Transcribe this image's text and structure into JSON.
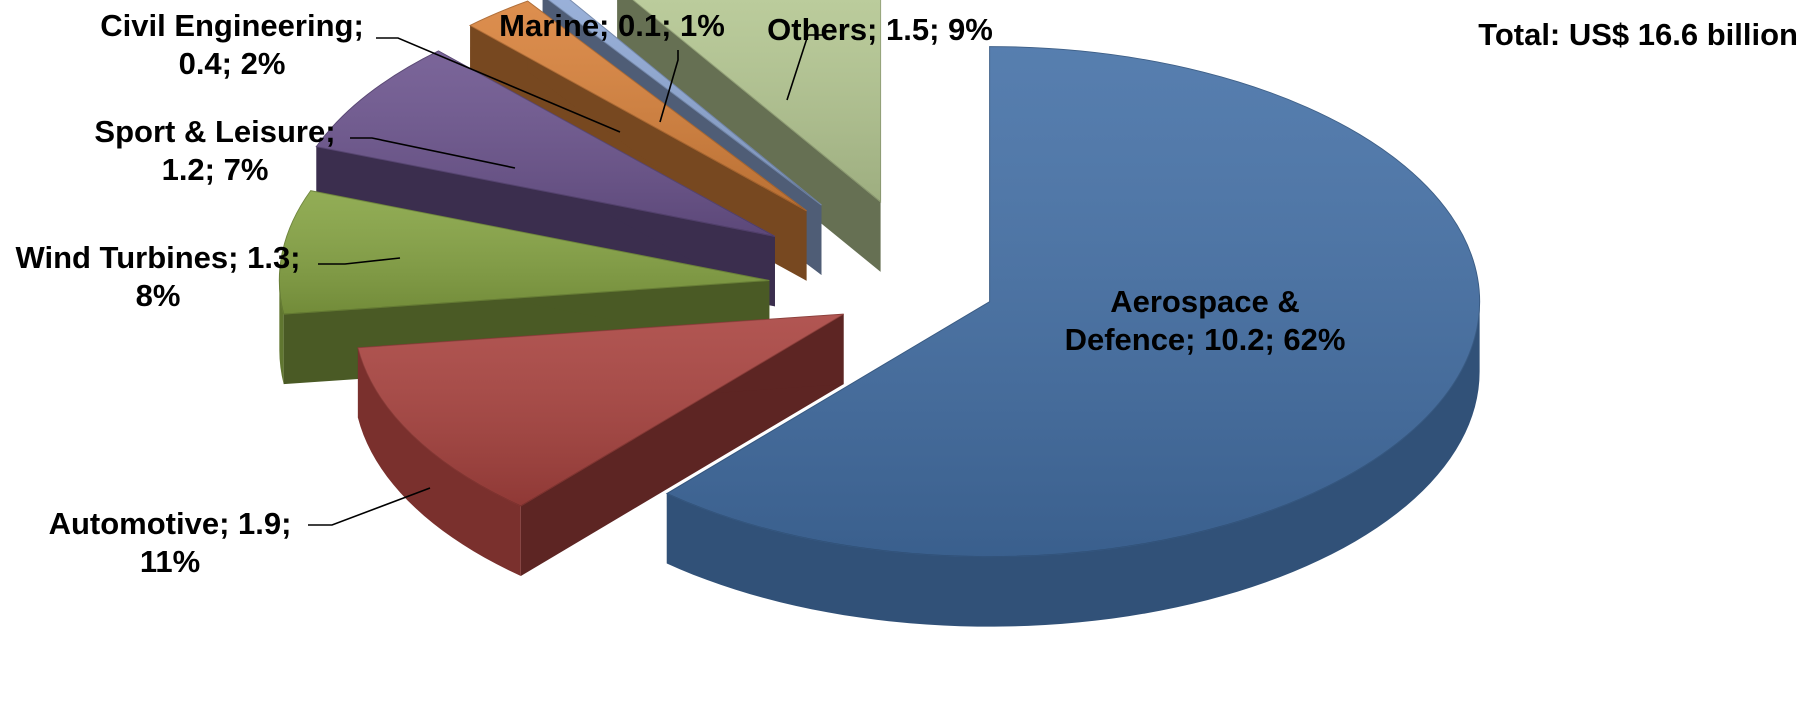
{
  "chart_data": {
    "type": "pie",
    "style": "3d-exploded",
    "total_label": "Total: US$ 16.6 billion",
    "slices": [
      {
        "name": "Aerospace & Defence",
        "value": 10.2,
        "percent": 62,
        "color": "#4470A6",
        "label_lines": [
          "Aerospace &",
          "Defence; 10.2; 62%"
        ]
      },
      {
        "name": "Automotive",
        "value": 1.9,
        "percent": 11,
        "color": "#A9433F",
        "label_lines": [
          "Automotive; 1.9;",
          "11%"
        ]
      },
      {
        "name": "Wind Turbines",
        "value": 1.3,
        "percent": 8,
        "color": "#86A443",
        "label_lines": [
          "Wind Turbines; 1.3;",
          "8%"
        ]
      },
      {
        "name": "Sport & Leisure",
        "value": 1.2,
        "percent": 7,
        "color": "#6C548E",
        "label_lines": [
          "Sport & Leisure;",
          "1.2; 7%"
        ]
      },
      {
        "name": "Civil Engineering",
        "value": 0.4,
        "percent": 2,
        "color": "#D9823B",
        "label_lines": [
          "Civil Engineering;",
          "0.4; 2%"
        ]
      },
      {
        "name": "Marine",
        "value": 0.1,
        "percent": 1,
        "color": "#8FA9D6",
        "label_lines": [
          "Marine; 0.1; 1%"
        ]
      },
      {
        "name": "Others",
        "value": 1.5,
        "percent": 9,
        "color": "#B9CC96",
        "label_lines": [
          "Others; 1.5; 9%"
        ]
      }
    ]
  }
}
